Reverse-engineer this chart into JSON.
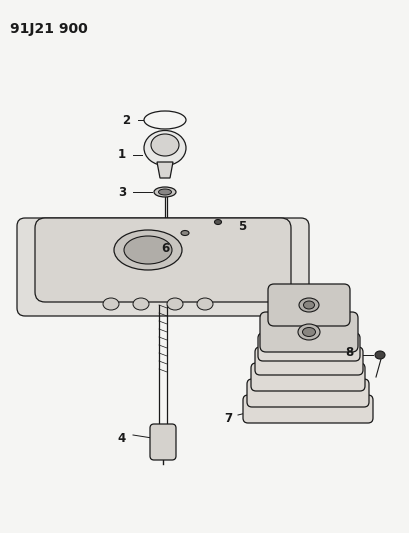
{
  "title": "91J21 900",
  "bg_color": "#f5f5f3",
  "line_color": "#1a1a1a",
  "title_fontsize": 10,
  "label_fontsize": 8.5,
  "label_bold": true
}
